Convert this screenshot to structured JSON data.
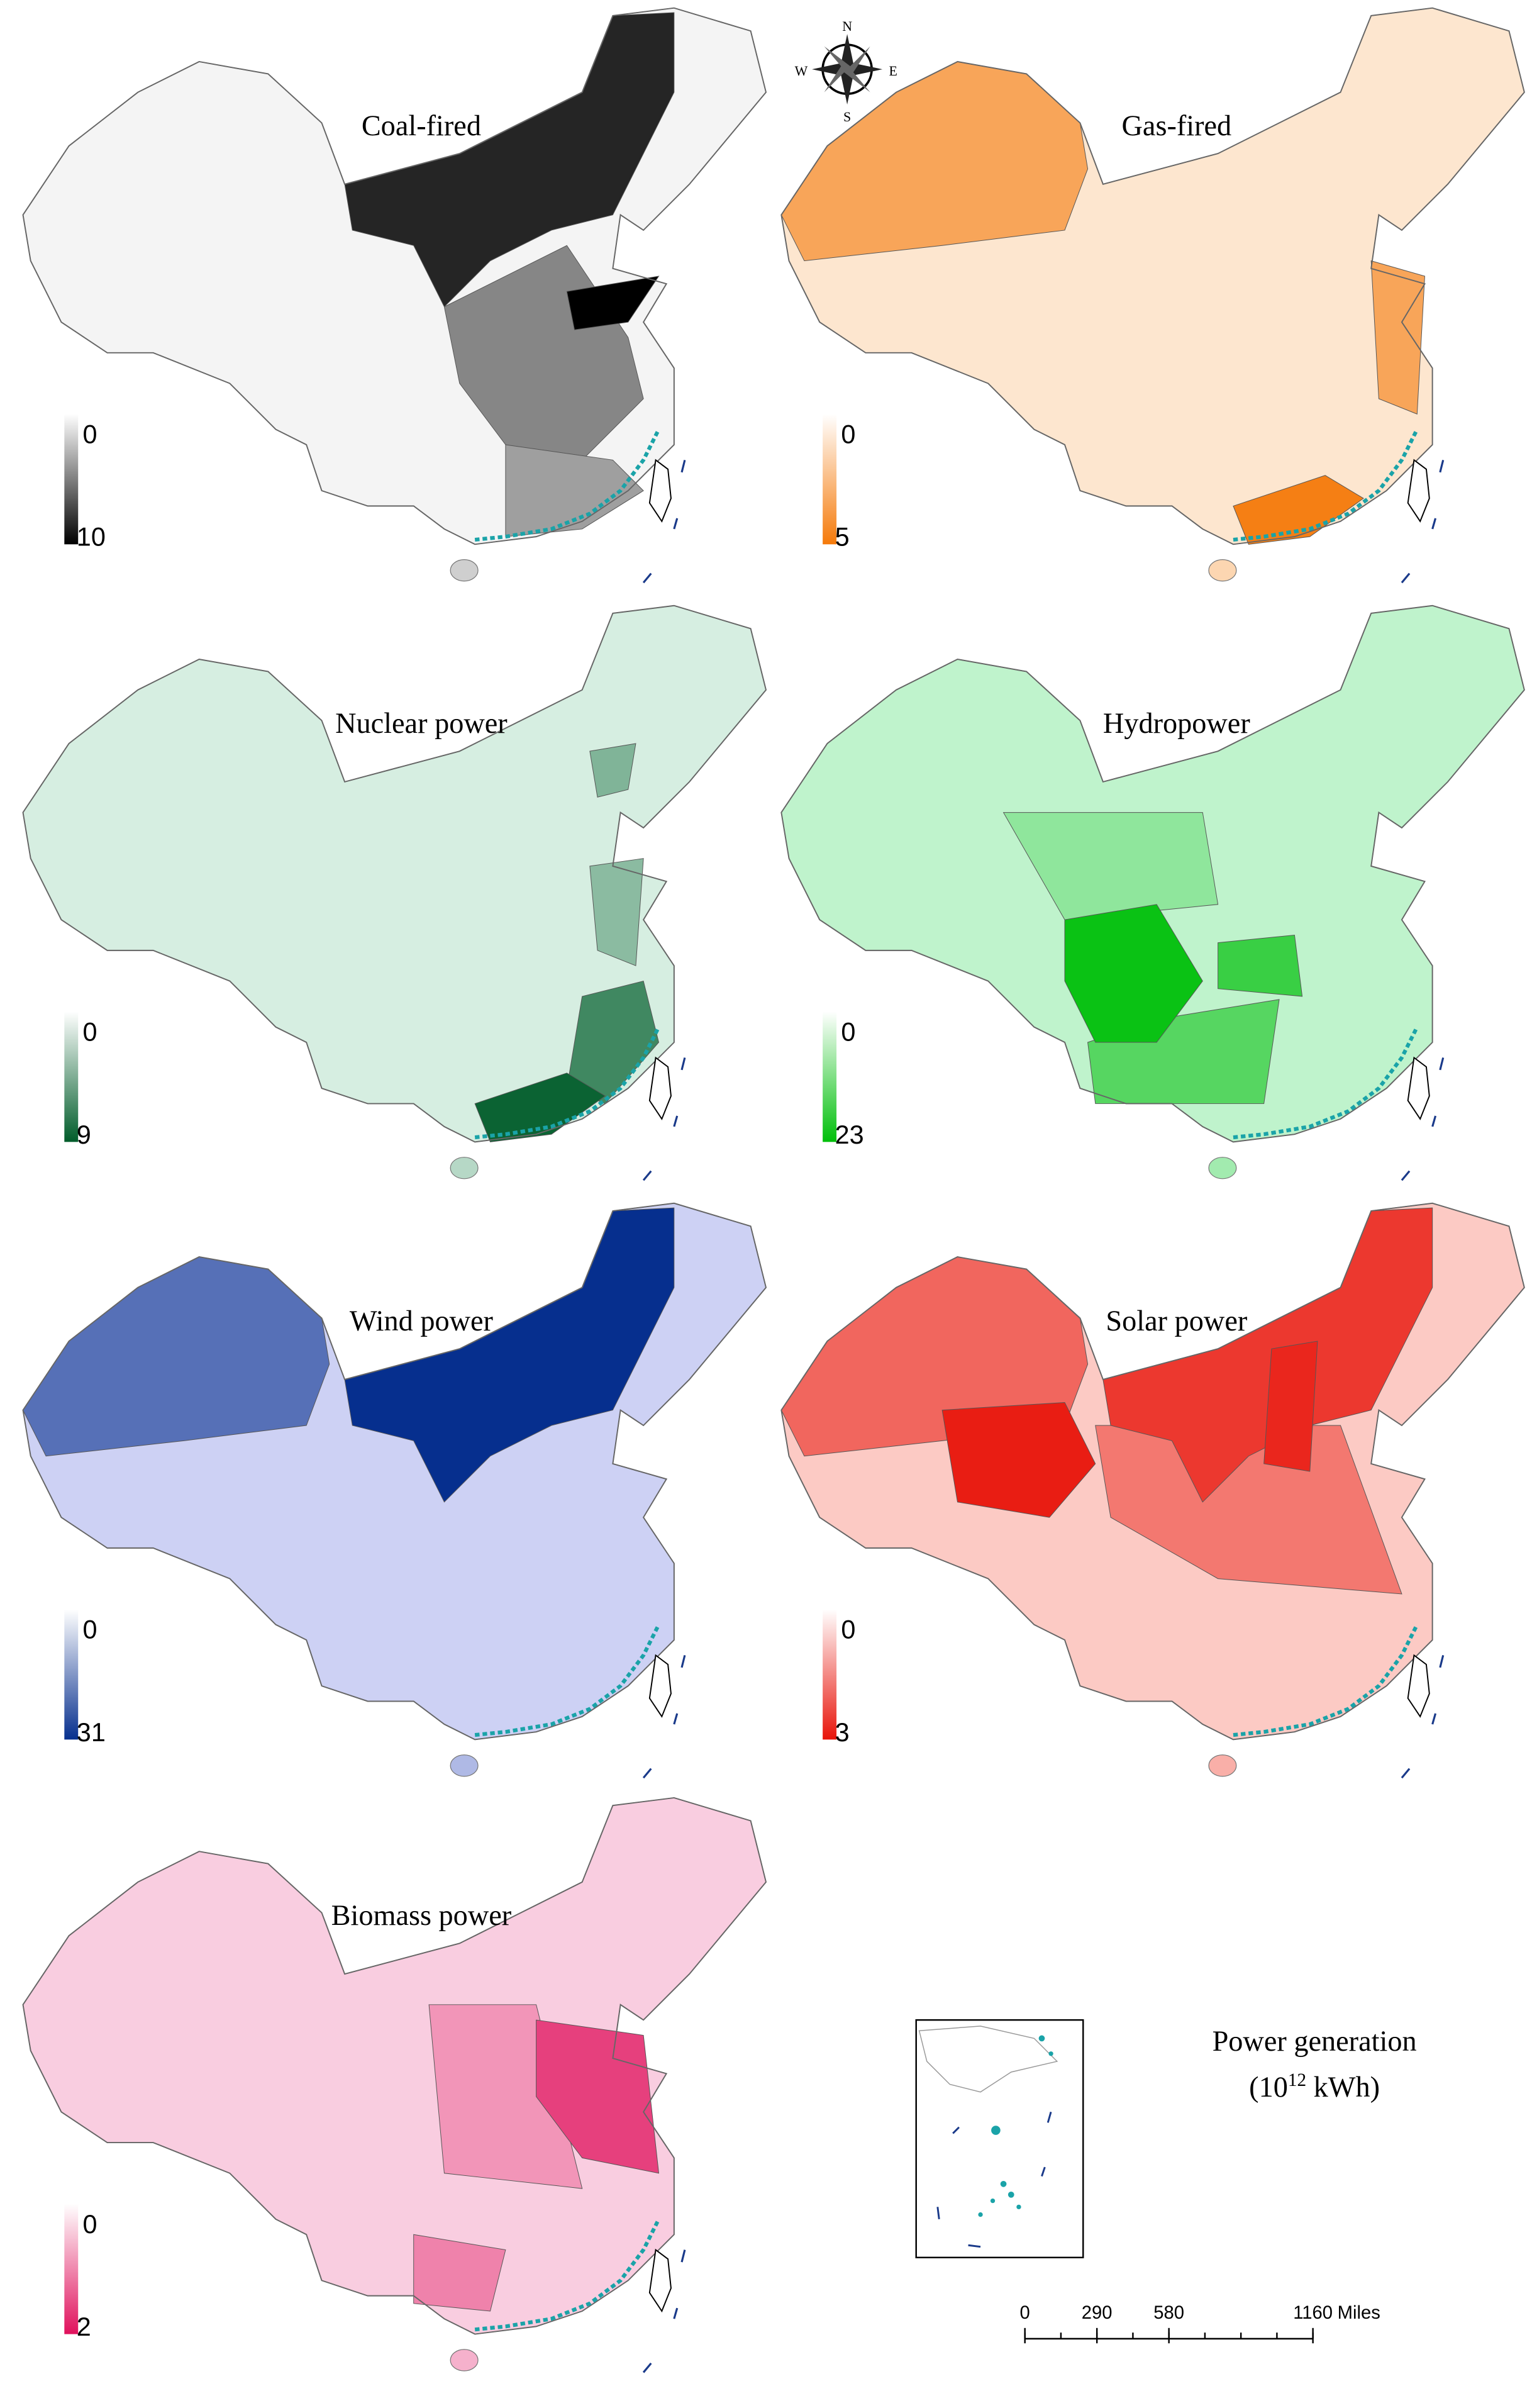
{
  "panels": [
    {
      "title": "Coal-fired",
      "legend_min": 0,
      "legend_max": 10,
      "color_low": "#f4f4f4",
      "color_high": "#000000"
    },
    {
      "title": "Gas-fired",
      "legend_min": 0,
      "legend_max": 5,
      "color_low": "#fde6cf",
      "color_high": "#f57a0a"
    },
    {
      "title": "Nuclear power",
      "legend_min": 0,
      "legend_max": 9,
      "color_low": "#d6eee1",
      "color_high": "#005c2a"
    },
    {
      "title": "Hydropower",
      "legend_min": 0,
      "legend_max": 23,
      "color_low": "#bff3cc",
      "color_high": "#00bf0a"
    },
    {
      "title": "Wind power",
      "legend_min": 0,
      "legend_max": 31,
      "color_low": "#cdd1f4",
      "color_high": "#062f8e"
    },
    {
      "title": "Solar power",
      "legend_min": 0,
      "legend_max": 3,
      "color_low": "#fccac4",
      "color_high": "#e8140a"
    },
    {
      "title": "Biomass power",
      "legend_min": 0,
      "legend_max": 2,
      "color_low": "#f9cde0",
      "color_high": "#e0115c"
    }
  ],
  "legend_title": "Power generation",
  "legend_unit": {
    "base": "(10",
    "exponent": "12",
    "suffix": " kWh)"
  },
  "scale_bar": {
    "ticks": [
      0,
      290,
      580,
      1160
    ],
    "unit": "Miles"
  },
  "compass": {
    "n": "N",
    "s": "S",
    "e": "E",
    "w": "W"
  }
}
